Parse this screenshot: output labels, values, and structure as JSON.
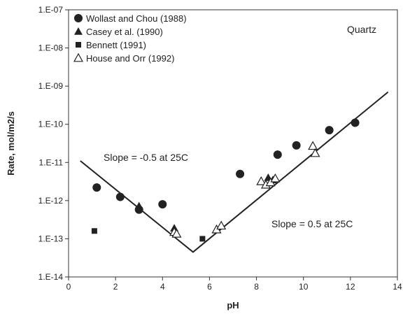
{
  "chart_data": {
    "type": "scatter",
    "title": "",
    "xlabel": "pH",
    "ylabel": "Rate, mol/m2/s",
    "xlim": [
      0,
      14
    ],
    "ylim": [
      1e-14,
      1e-07
    ],
    "yscale": "log",
    "x_ticks": [
      0,
      2,
      4,
      6,
      8,
      10,
      12,
      14
    ],
    "x_tick_labels": [
      "0",
      "2",
      "4",
      "6",
      "8",
      "10",
      "12",
      "14"
    ],
    "y_ticks": [
      1e-14,
      1e-13,
      1e-12,
      1e-11,
      1e-10,
      1e-09,
      1e-08,
      1e-07
    ],
    "y_tick_labels": [
      "1.E-14",
      "1.E-13",
      "1.E-12",
      "1.E-11",
      "1.E-10",
      "1.E-09",
      "1.E-08",
      "1.E-07"
    ],
    "grid": false,
    "legend_position": "top-left",
    "annotation_label": "Quartz",
    "series": [
      {
        "name": "Wollast and Chou (1988)",
        "marker": "circle",
        "points": [
          [
            1.2,
            2.2e-12
          ],
          [
            2.2,
            1.25e-12
          ],
          [
            3.0,
            5.8e-13
          ],
          [
            4.0,
            8e-13
          ],
          [
            7.3,
            5e-12
          ],
          [
            8.9,
            1.6e-11
          ],
          [
            9.7,
            2.8e-11
          ],
          [
            11.1,
            7e-11
          ],
          [
            12.2,
            1.1e-10
          ]
        ]
      },
      {
        "name": "Casey et al. (1990)",
        "marker": "triangle-filled",
        "points": [
          [
            3.0,
            7.2e-13
          ],
          [
            4.5,
            1.9e-13
          ],
          [
            8.5,
            4e-12
          ],
          [
            8.7,
            3.5e-12
          ]
        ]
      },
      {
        "name": "Bennett (1991)",
        "marker": "square",
        "points": [
          [
            1.1,
            1.6e-13
          ],
          [
            5.7,
            1e-13
          ]
        ]
      },
      {
        "name": "House and Orr (1992)",
        "marker": "triangle-open",
        "points": [
          [
            4.5,
            1.5e-13
          ],
          [
            4.6,
            1.35e-13
          ],
          [
            6.3,
            1.75e-13
          ],
          [
            6.5,
            2.2e-13
          ],
          [
            8.2,
            3.2e-12
          ],
          [
            8.4,
            2.6e-12
          ],
          [
            8.6,
            3e-12
          ],
          [
            8.8,
            3.8e-12
          ],
          [
            10.4,
            2.7e-11
          ],
          [
            10.5,
            1.75e-11
          ]
        ]
      }
    ],
    "fit_line": [
      [
        0.5,
        1.1e-11
      ],
      [
        5.3,
        4.5e-14
      ],
      [
        13.6,
        7e-10
      ]
    ],
    "annotations": [
      "Slope = -0.5 at 25C",
      "Slope = 0.5 at 25C"
    ]
  }
}
